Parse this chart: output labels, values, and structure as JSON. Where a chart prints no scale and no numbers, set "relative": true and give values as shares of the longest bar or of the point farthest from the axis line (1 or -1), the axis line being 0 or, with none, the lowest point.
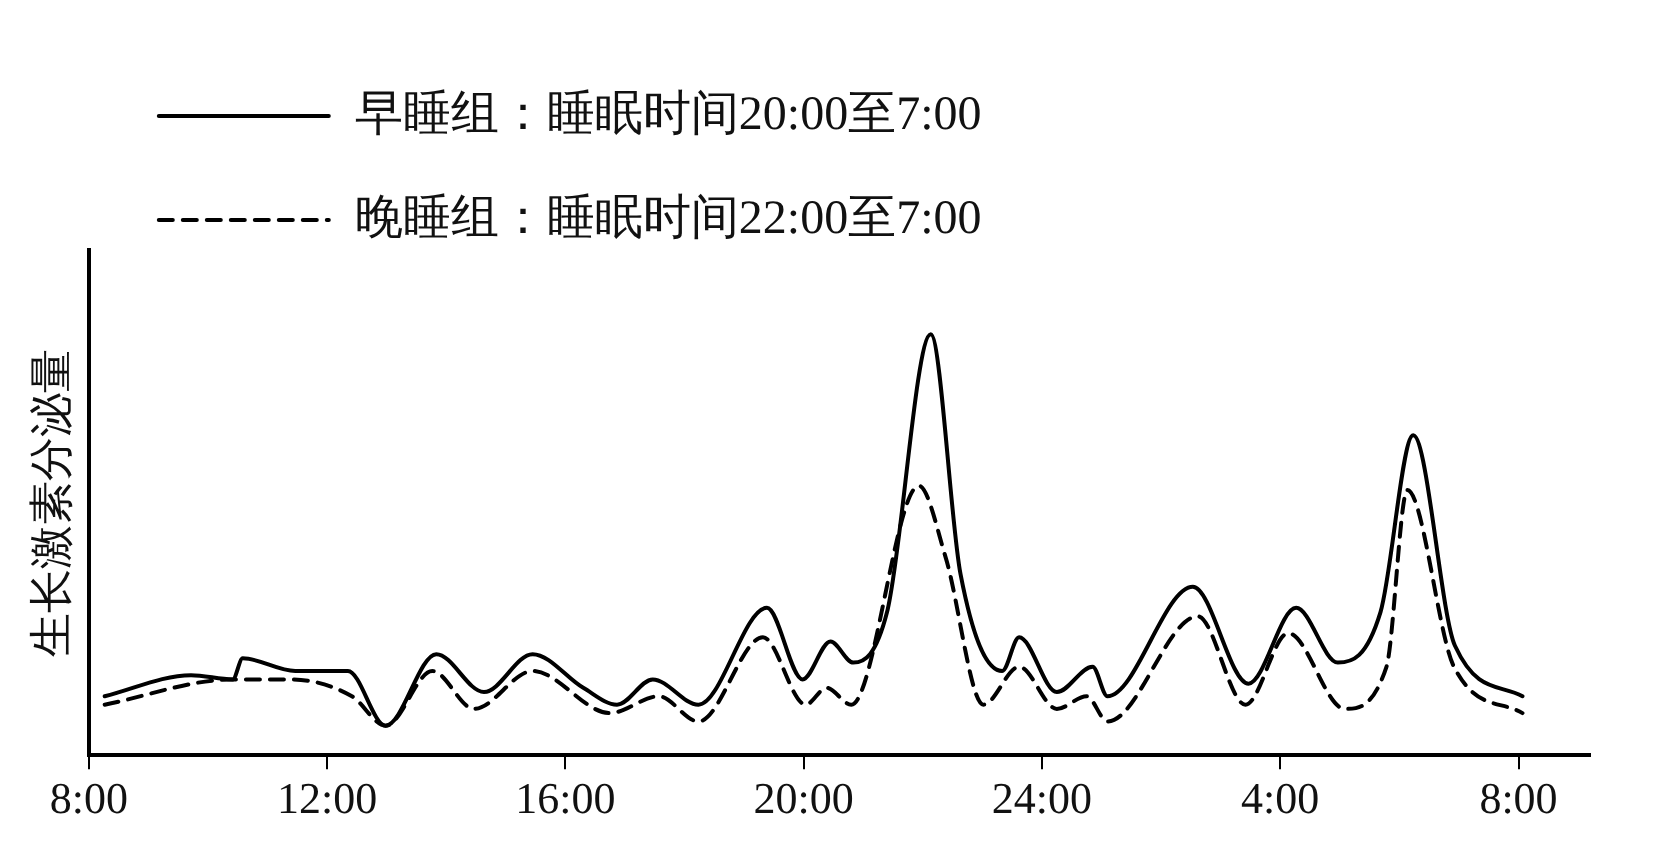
{
  "chart_data": {
    "type": "line",
    "relative": true,
    "ylabel": "生长激素分泌量",
    "legend": "top left",
    "marker": "none",
    "grid": false,
    "xlim": [
      "--01-01T08:00",
      "--01-02T09:12"
    ],
    "xticks": [
      {
        "value": "--01-01T08:00",
        "label": "8:00"
      },
      {
        "value": "--01-01T12:00",
        "label": "12:00"
      },
      {
        "value": "--01-01T16:00",
        "label": "16:00"
      },
      {
        "value": "--01-01T20:00",
        "label": "20:00"
      },
      {
        "value": "--01-02T00:00",
        "label": "24:00"
      },
      {
        "value": "--01-02T04:00",
        "label": "4:00"
      },
      {
        "value": "--01-02T08:00",
        "label": "8:00"
      }
    ],
    "series": [
      {
        "name": "早睡组：睡眠时间20:00至7:00",
        "color": "#000000",
        "line_style": "solid",
        "x": [
          "--01-01T08:16",
          "--01-01T09:43",
          "--01-01T10:25",
          "--01-01T10:35",
          "--01-01T11:28",
          "--01-01T12:21",
          "--01-01T12:59",
          "--01-01T13:50",
          "--01-01T14:38",
          "--01-01T15:27",
          "--01-01T16:18",
          "--01-01T16:52",
          "--01-01T17:28",
          "--01-01T18:14",
          "--01-01T19:23",
          "--01-01T19:59",
          "--01-01T20:27",
          "--01-01T20:50",
          "--01-01T21:24",
          "--01-01T22:08",
          "--01-01T22:38",
          "--01-01T23:20",
          "--01-01T23:37",
          "--01-02T00:15",
          "--01-02T00:51",
          "--01-02T01:06",
          "--01-02T02:32",
          "--01-02T03:28",
          "--01-02T04:16",
          "--01-02T04:58",
          "--01-02T05:41",
          "--01-02T06:14",
          "--01-02T06:56",
          "--01-02T08:04"
        ],
        "values": [
          0.14,
          0.19,
          0.18,
          0.23,
          0.2,
          0.2,
          0.07,
          0.24,
          0.15,
          0.24,
          0.16,
          0.12,
          0.18,
          0.12,
          0.35,
          0.18,
          0.27,
          0.22,
          0.34,
          1,
          0.43,
          0.2,
          0.28,
          0.15,
          0.21,
          0.14,
          0.4,
          0.17,
          0.35,
          0.22,
          0.34,
          0.76,
          0.26,
          0.14
        ]
      },
      {
        "name": "晚睡组：睡眠时间22:00至7:00",
        "color": "#000000",
        "line_style": "dashed",
        "x": [
          "--01-01T08:16",
          "--01-01T10:25",
          "--01-01T11:22",
          "--01-01T12:25",
          "--01-01T12:59",
          "--01-01T13:46",
          "--01-01T14:28",
          "--01-01T15:27",
          "--01-01T16:45",
          "--01-01T17:34",
          "--01-01T18:14",
          "--01-01T19:19",
          "--01-01T20:02",
          "--01-01T20:23",
          "--01-01T20:48",
          "--01-01T21:56",
          "--01-01T22:23",
          "--01-01T23:01",
          "--01-01T23:37",
          "--01-02T00:15",
          "--01-02T00:45",
          "--01-02T01:06",
          "--01-02T02:37",
          "--01-02T03:25",
          "--01-02T04:08",
          "--01-02T05:05",
          "--01-02T05:47",
          "--01-02T06:08",
          "--01-02T06:55",
          "--01-02T08:04"
        ],
        "values": [
          0.12,
          0.18,
          0.18,
          0.14,
          0.07,
          0.2,
          0.11,
          0.2,
          0.1,
          0.14,
          0.08,
          0.28,
          0.12,
          0.16,
          0.12,
          0.64,
          0.47,
          0.12,
          0.21,
          0.11,
          0.14,
          0.08,
          0.33,
          0.12,
          0.29,
          0.11,
          0.21,
          0.63,
          0.21,
          0.1
        ]
      }
    ]
  }
}
